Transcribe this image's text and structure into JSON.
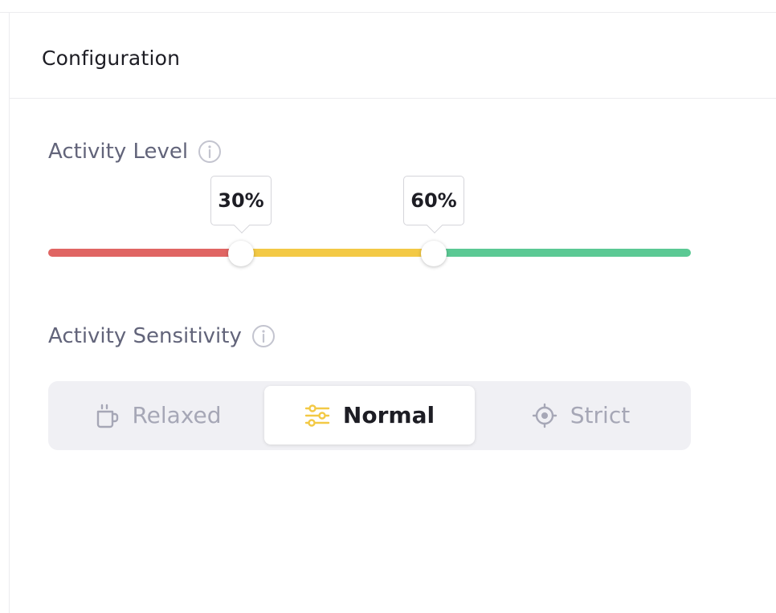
{
  "panel": {
    "title": "Configuration"
  },
  "activity_level": {
    "label": "Activity Level",
    "info_icon": "info-icon",
    "thresholds": [
      {
        "value_percent": 30,
        "label": "30%"
      },
      {
        "value_percent": 60,
        "label": "60%"
      }
    ],
    "colors": {
      "low": "#e06563",
      "mid": "#f3c945",
      "high": "#5bc994"
    }
  },
  "activity_sensitivity": {
    "label": "Activity Sensitivity",
    "info_icon": "info-icon",
    "options": [
      {
        "label": "Relaxed",
        "icon": "coffee-cup-icon",
        "selected": false
      },
      {
        "label": "Normal",
        "icon": "sliders-icon",
        "selected": true
      },
      {
        "label": "Strict",
        "icon": "crosshair-icon",
        "selected": false
      }
    ],
    "accent_color": "#f3c945"
  }
}
